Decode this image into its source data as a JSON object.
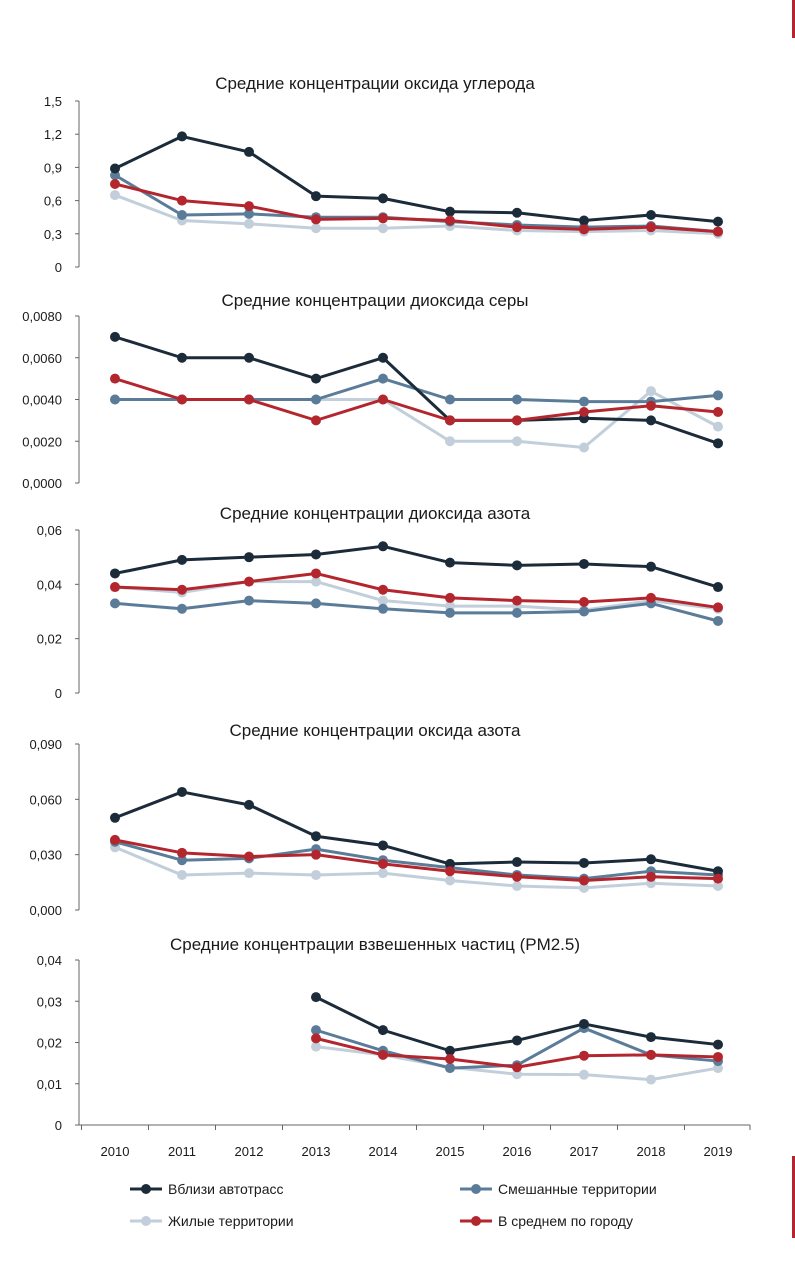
{
  "colors": {
    "near_roads": "#1c2b39",
    "mixed": "#5a7c99",
    "residential": "#c2cfda",
    "city_avg": "#b3262e",
    "axis": "#666666",
    "text": "#1a1a1a",
    "accent_bar": "#b3262e"
  },
  "x_categories": [
    "2010",
    "2011",
    "2012",
    "2013",
    "2014",
    "2015",
    "2016",
    "2017",
    "2018",
    "2019"
  ],
  "legend": [
    {
      "key": "near_roads",
      "label": "Вблизи автотрасс",
      "placement": "bottom-left"
    },
    {
      "key": "mixed",
      "label": "Смешанные территории",
      "placement": "bottom-right"
    },
    {
      "key": "residential",
      "label": "Жилые территории",
      "placement": "bottom-left"
    },
    {
      "key": "city_avg",
      "label": "В среднем по городу",
      "placement": "bottom-right"
    }
  ],
  "chart_data": [
    {
      "type": "line",
      "title": "Средние концентрации оксида углерода",
      "ylim": [
        0,
        1.5
      ],
      "yticks": [
        "0",
        "0,3",
        "0,6",
        "0,9",
        "1,2",
        "1,5"
      ],
      "x": [
        "2010",
        "2011",
        "2012",
        "2013",
        "2014",
        "2015",
        "2016",
        "2017",
        "2018",
        "2019"
      ],
      "series": [
        {
          "name": "Вблизи автотрасс",
          "key": "near_roads",
          "values": [
            0.89,
            1.18,
            1.04,
            0.64,
            0.62,
            0.5,
            0.49,
            0.42,
            0.47,
            0.41
          ]
        },
        {
          "name": "Смешанные территории",
          "key": "mixed",
          "values": [
            0.83,
            0.47,
            0.48,
            0.45,
            0.45,
            0.41,
            0.38,
            0.36,
            0.37,
            0.32
          ]
        },
        {
          "name": "Жилые территории",
          "key": "residential",
          "values": [
            0.65,
            0.42,
            0.39,
            0.35,
            0.35,
            0.37,
            0.33,
            0.32,
            0.33,
            0.3
          ]
        },
        {
          "name": "В среднем по городу",
          "key": "city_avg",
          "values": [
            0.75,
            0.6,
            0.55,
            0.43,
            0.44,
            0.42,
            0.36,
            0.34,
            0.36,
            0.32
          ]
        }
      ]
    },
    {
      "type": "line",
      "title": "Средние концентрации диоксида серы",
      "ylim": [
        0,
        0.008
      ],
      "yticks": [
        "0,0000",
        "0,0020",
        "0,0040",
        "0,0060",
        "0,0080"
      ],
      "x": [
        "2010",
        "2011",
        "2012",
        "2013",
        "2014",
        "2015",
        "2016",
        "2017",
        "2018",
        "2019"
      ],
      "series": [
        {
          "name": "Вблизи автотрасс",
          "key": "near_roads",
          "values": [
            0.007,
            0.006,
            0.006,
            0.005,
            0.006,
            0.003,
            0.003,
            0.0031,
            0.003,
            0.0019
          ]
        },
        {
          "name": "Смешанные территории",
          "key": "mixed",
          "values": [
            0.004,
            0.004,
            0.004,
            0.004,
            0.005,
            0.004,
            0.004,
            0.0039,
            0.0039,
            0.0042
          ]
        },
        {
          "name": "Жилые территории",
          "key": "residential",
          "values": [
            0.004,
            0.004,
            0.004,
            0.004,
            0.004,
            0.002,
            0.002,
            0.0017,
            0.0044,
            0.0027
          ]
        },
        {
          "name": "В среднем по городу",
          "key": "city_avg",
          "values": [
            0.005,
            0.004,
            0.004,
            0.003,
            0.004,
            0.003,
            0.003,
            0.0034,
            0.0037,
            0.0034
          ]
        }
      ]
    },
    {
      "type": "line",
      "title": "Средние концентрации диоксида азота",
      "ylim": [
        0,
        0.06
      ],
      "yticks": [
        "0",
        "0,02",
        "0,04",
        "0,06"
      ],
      "x": [
        "2010",
        "2011",
        "2012",
        "2013",
        "2014",
        "2015",
        "2016",
        "2017",
        "2018",
        "2019"
      ],
      "series": [
        {
          "name": "Вблизи автотрасс",
          "key": "near_roads",
          "values": [
            0.044,
            0.049,
            0.05,
            0.051,
            0.054,
            0.048,
            0.047,
            0.0475,
            0.0465,
            0.039
          ]
        },
        {
          "name": "Смешанные территории",
          "key": "mixed",
          "values": [
            0.033,
            0.031,
            0.034,
            0.033,
            0.031,
            0.0295,
            0.0295,
            0.03,
            0.033,
            0.0265
          ]
        },
        {
          "name": "Жилые территории",
          "key": "residential",
          "values": [
            0.039,
            0.037,
            0.041,
            0.041,
            0.034,
            0.032,
            0.032,
            0.0305,
            0.034,
            0.031
          ]
        },
        {
          "name": "В среднем по городу",
          "key": "city_avg",
          "values": [
            0.039,
            0.038,
            0.041,
            0.044,
            0.038,
            0.035,
            0.034,
            0.0335,
            0.035,
            0.0315
          ]
        }
      ]
    },
    {
      "type": "line",
      "title": "Средние концентрации оксида азота",
      "ylim": [
        0,
        0.09
      ],
      "yticks": [
        "0,000",
        "0,030",
        "0,060",
        "0,090"
      ],
      "x": [
        "2010",
        "2011",
        "2012",
        "2013",
        "2014",
        "2015",
        "2016",
        "2017",
        "2018",
        "2019"
      ],
      "series": [
        {
          "name": "Вблизи автотрасс",
          "key": "near_roads",
          "values": [
            0.05,
            0.064,
            0.057,
            0.04,
            0.035,
            0.025,
            0.026,
            0.0255,
            0.0275,
            0.021
          ]
        },
        {
          "name": "Смешанные территории",
          "key": "mixed",
          "values": [
            0.037,
            0.027,
            0.028,
            0.033,
            0.027,
            0.023,
            0.019,
            0.017,
            0.021,
            0.019
          ]
        },
        {
          "name": "Жилые территории",
          "key": "residential",
          "values": [
            0.034,
            0.019,
            0.02,
            0.019,
            0.02,
            0.016,
            0.013,
            0.012,
            0.0145,
            0.013
          ]
        },
        {
          "name": "В среднем по городу",
          "key": "city_avg",
          "values": [
            0.038,
            0.031,
            0.029,
            0.03,
            0.025,
            0.021,
            0.018,
            0.016,
            0.018,
            0.017
          ]
        }
      ]
    },
    {
      "type": "line",
      "title": "Средние концентрации взвешенных частиц (PM2.5)",
      "ylim": [
        0,
        0.04
      ],
      "yticks": [
        "0",
        "0,01",
        "0,02",
        "0,03",
        "0,04"
      ],
      "xlabels_shown": true,
      "x": [
        "2010",
        "2011",
        "2012",
        "2013",
        "2014",
        "2015",
        "2016",
        "2017",
        "2018",
        "2019"
      ],
      "series": [
        {
          "name": "Вблизи автотрасс",
          "key": "near_roads",
          "values": [
            null,
            null,
            null,
            0.031,
            0.023,
            0.018,
            0.0205,
            0.0245,
            0.0213,
            0.0195
          ]
        },
        {
          "name": "Смешанные территории",
          "key": "mixed",
          "values": [
            null,
            null,
            null,
            0.023,
            0.018,
            0.0138,
            0.0145,
            0.0235,
            0.017,
            0.0155
          ]
        },
        {
          "name": "Жилые территории",
          "key": "residential",
          "values": [
            null,
            null,
            null,
            0.019,
            0.017,
            0.014,
            0.0123,
            0.0122,
            0.011,
            0.0138
          ]
        },
        {
          "name": "В среднем по городу",
          "key": "city_avg",
          "values": [
            null,
            null,
            null,
            0.021,
            0.017,
            0.016,
            0.014,
            0.0168,
            0.017,
            0.0165
          ]
        }
      ]
    }
  ]
}
